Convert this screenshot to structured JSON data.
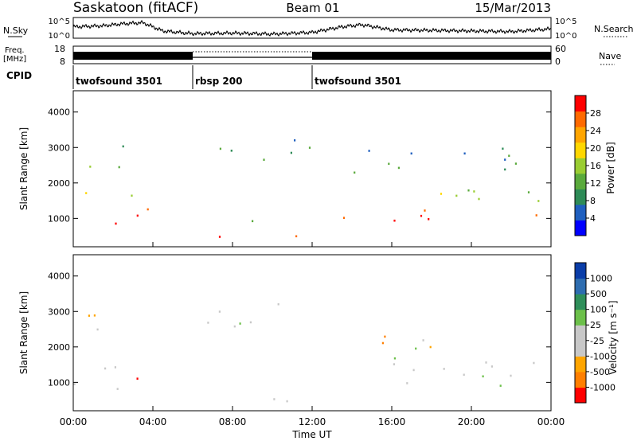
{
  "header": {
    "station": "Saskatoon (fitACF)",
    "beam": "Beam 01",
    "date": "15/Mar/2013"
  },
  "colors": {
    "power_scale": [
      "#0000ff",
      "#1f5fbf",
      "#2e8b57",
      "#5aaa3c",
      "#9acd32",
      "#ffd700",
      "#ffa500",
      "#ff6a00",
      "#ff0000"
    ],
    "velocity_scale": [
      "#0a3da8",
      "#2e6db0",
      "#2f8f5a",
      "#6cc04a",
      "#c8c8c8",
      "#c8c8c8",
      "#ffa500",
      "#ff7f00",
      "#ff0000"
    ]
  },
  "chart_data": [
    {
      "type": "line",
      "name": "noise-panel",
      "labels": {
        "left_upper": "N.Sky",
        "right_upper": "N.Search",
        "left_lower": "Freq.",
        "left_lower_unit": "[MHz]",
        "right_lower": "Nave",
        "cpid_label": "CPID"
      },
      "noise_ticks": [
        "10^5",
        "10^0"
      ],
      "noise_ticks_right": [
        "10^5",
        "10^0"
      ],
      "freq_ticks": [
        "18",
        "8"
      ],
      "nave_ticks": [
        "60",
        "0"
      ],
      "x_range_hours": [
        0,
        24
      ],
      "noise_profile": [
        {
          "t": 0,
          "v": 0.55
        },
        {
          "t": 1.5,
          "v": 0.6
        },
        {
          "t": 2.5,
          "v": 0.7
        },
        {
          "t": 3.5,
          "v": 0.75
        },
        {
          "t": 4.5,
          "v": 0.35
        },
        {
          "t": 6,
          "v": 0.22
        },
        {
          "t": 8,
          "v": 0.25
        },
        {
          "t": 10,
          "v": 0.2
        },
        {
          "t": 12,
          "v": 0.28
        },
        {
          "t": 13.5,
          "v": 0.55
        },
        {
          "t": 14.5,
          "v": 0.65
        },
        {
          "t": 16,
          "v": 0.4
        },
        {
          "t": 18,
          "v": 0.38
        },
        {
          "t": 20,
          "v": 0.35
        },
        {
          "t": 22,
          "v": 0.32
        },
        {
          "t": 24,
          "v": 0.45
        }
      ],
      "cpid_segments": [
        {
          "label": "twofsound 3501",
          "start": 0,
          "end": 6
        },
        {
          "label": "rbsp 200",
          "start": 6,
          "end": 12
        },
        {
          "label": "twofsound 3501",
          "start": 12,
          "end": 24
        }
      ]
    },
    {
      "type": "heatmap",
      "name": "power-panel",
      "ylabel": "Slant Range [km]",
      "yticks": [
        1000,
        2000,
        3000,
        4000
      ],
      "ylim": [
        200,
        4600
      ],
      "xlim": [
        0,
        24
      ],
      "colorbar": {
        "label": "Power [dB]",
        "ticks": [
          "28",
          "24",
          "20",
          "16",
          "12",
          "8",
          "4"
        ]
      },
      "regions": [
        {
          "t0": 0,
          "t1": 3.2,
          "r0": 700,
          "r1": 1300,
          "level": 8
        },
        {
          "t0": 0,
          "t1": 3.5,
          "r0": 1300,
          "r1": 1800,
          "level": 4
        },
        {
          "t0": 0.2,
          "t1": 2.8,
          "r0": 2300,
          "r1": 3200,
          "level": 3
        },
        {
          "t0": 3.0,
          "t1": 4.5,
          "r0": 700,
          "r1": 1500,
          "level": 7
        },
        {
          "t0": 5.5,
          "t1": 12,
          "r0": 400,
          "r1": 700,
          "level": 7
        },
        {
          "t0": 6.5,
          "t1": 9.5,
          "r0": 900,
          "r1": 1200,
          "level": 4
        },
        {
          "t0": 6,
          "t1": 12,
          "r0": 2600,
          "r1": 3500,
          "level": 2
        },
        {
          "t0": 11.8,
          "t1": 12.5,
          "r0": 800,
          "r1": 1200,
          "level": 7
        },
        {
          "t0": 13.5,
          "t1": 23.8,
          "r0": 900,
          "r1": 1400,
          "level": 8
        },
        {
          "t0": 13.5,
          "t1": 23.8,
          "r0": 1400,
          "r1": 2000,
          "level": 4
        },
        {
          "t0": 14,
          "t1": 23.5,
          "r0": 2000,
          "r1": 3000,
          "level": 2
        }
      ]
    },
    {
      "type": "heatmap",
      "name": "velocity-panel",
      "xlabel": "Time UT",
      "ylabel": "Slant Range [km]",
      "yticks": [
        1000,
        2000,
        3000,
        4000
      ],
      "ylim": [
        200,
        4600
      ],
      "xlim": [
        0,
        24
      ],
      "xticks": [
        "00:00",
        "04:00",
        "08:00",
        "12:00",
        "16:00",
        "20:00",
        "00:00"
      ],
      "colorbar": {
        "label": "Velocity [m s⁻¹]",
        "ticks": [
          "1000",
          "500",
          "100",
          "25",
          "-25",
          "-100",
          "-500",
          "-1000"
        ]
      },
      "regions": [
        {
          "t0": 0,
          "t1": 3.2,
          "r0": 700,
          "r1": 1800,
          "level": 4
        },
        {
          "t0": 0.2,
          "t1": 2.8,
          "r0": 2300,
          "r1": 3200,
          "level": 6
        },
        {
          "t0": 3.0,
          "t1": 4.5,
          "r0": 700,
          "r1": 1500,
          "level": 7
        },
        {
          "t0": 5.5,
          "t1": 12,
          "r0": 400,
          "r1": 700,
          "level": 4
        },
        {
          "t0": 6,
          "t1": 12,
          "r0": 2600,
          "r1": 3500,
          "level": 4
        },
        {
          "t0": 13.5,
          "t1": 23.8,
          "r0": 900,
          "r1": 2000,
          "level": 4
        },
        {
          "t0": 14,
          "t1": 18,
          "r0": 2000,
          "r1": 2800,
          "level": 6
        },
        {
          "t0": 18,
          "t1": 19,
          "r0": 2500,
          "r1": 2800,
          "level": 3
        }
      ]
    }
  ]
}
